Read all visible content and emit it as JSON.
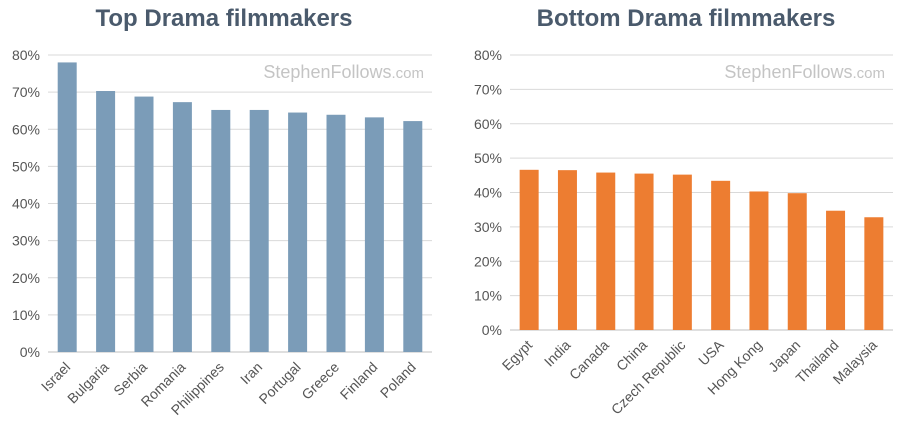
{
  "chart_data": [
    {
      "type": "bar",
      "title": "Top Drama filmmakers",
      "categories": [
        "Israel",
        "Bulgaria",
        "Serbia",
        "Romania",
        "Philippines",
        "Iran",
        "Portugal",
        "Greece",
        "Finland",
        "Poland"
      ],
      "values": [
        78,
        70.3,
        68.8,
        67.3,
        65.2,
        65.2,
        64.5,
        63.9,
        63.2,
        62.2
      ],
      "ylim": [
        0,
        80
      ],
      "yticks": [
        "0%",
        "10%",
        "20%",
        "30%",
        "40%",
        "50%",
        "60%",
        "70%",
        "80%"
      ],
      "color": "#7b9cb8",
      "grid": true,
      "watermark": {
        "main": "StephenFollows",
        "suffix": ".com"
      }
    },
    {
      "type": "bar",
      "title": "Bottom Drama filmmakers",
      "categories": [
        "Egypt",
        "India",
        "Canada",
        "China",
        "Czech Republic",
        "USA",
        "Hong Kong",
        "Japan",
        "Thailand",
        "Malaysia"
      ],
      "values": [
        46.6,
        46.5,
        45.8,
        45.5,
        45.2,
        43.4,
        40.3,
        39.8,
        34.7,
        32.8
      ],
      "ylim": [
        0,
        80
      ],
      "yticks": [
        "0%",
        "10%",
        "20%",
        "30%",
        "40%",
        "50%",
        "60%",
        "70%",
        "80%"
      ],
      "color": "#ed7d31",
      "grid": true,
      "watermark": {
        "main": "StephenFollows",
        "suffix": ".com"
      }
    }
  ]
}
